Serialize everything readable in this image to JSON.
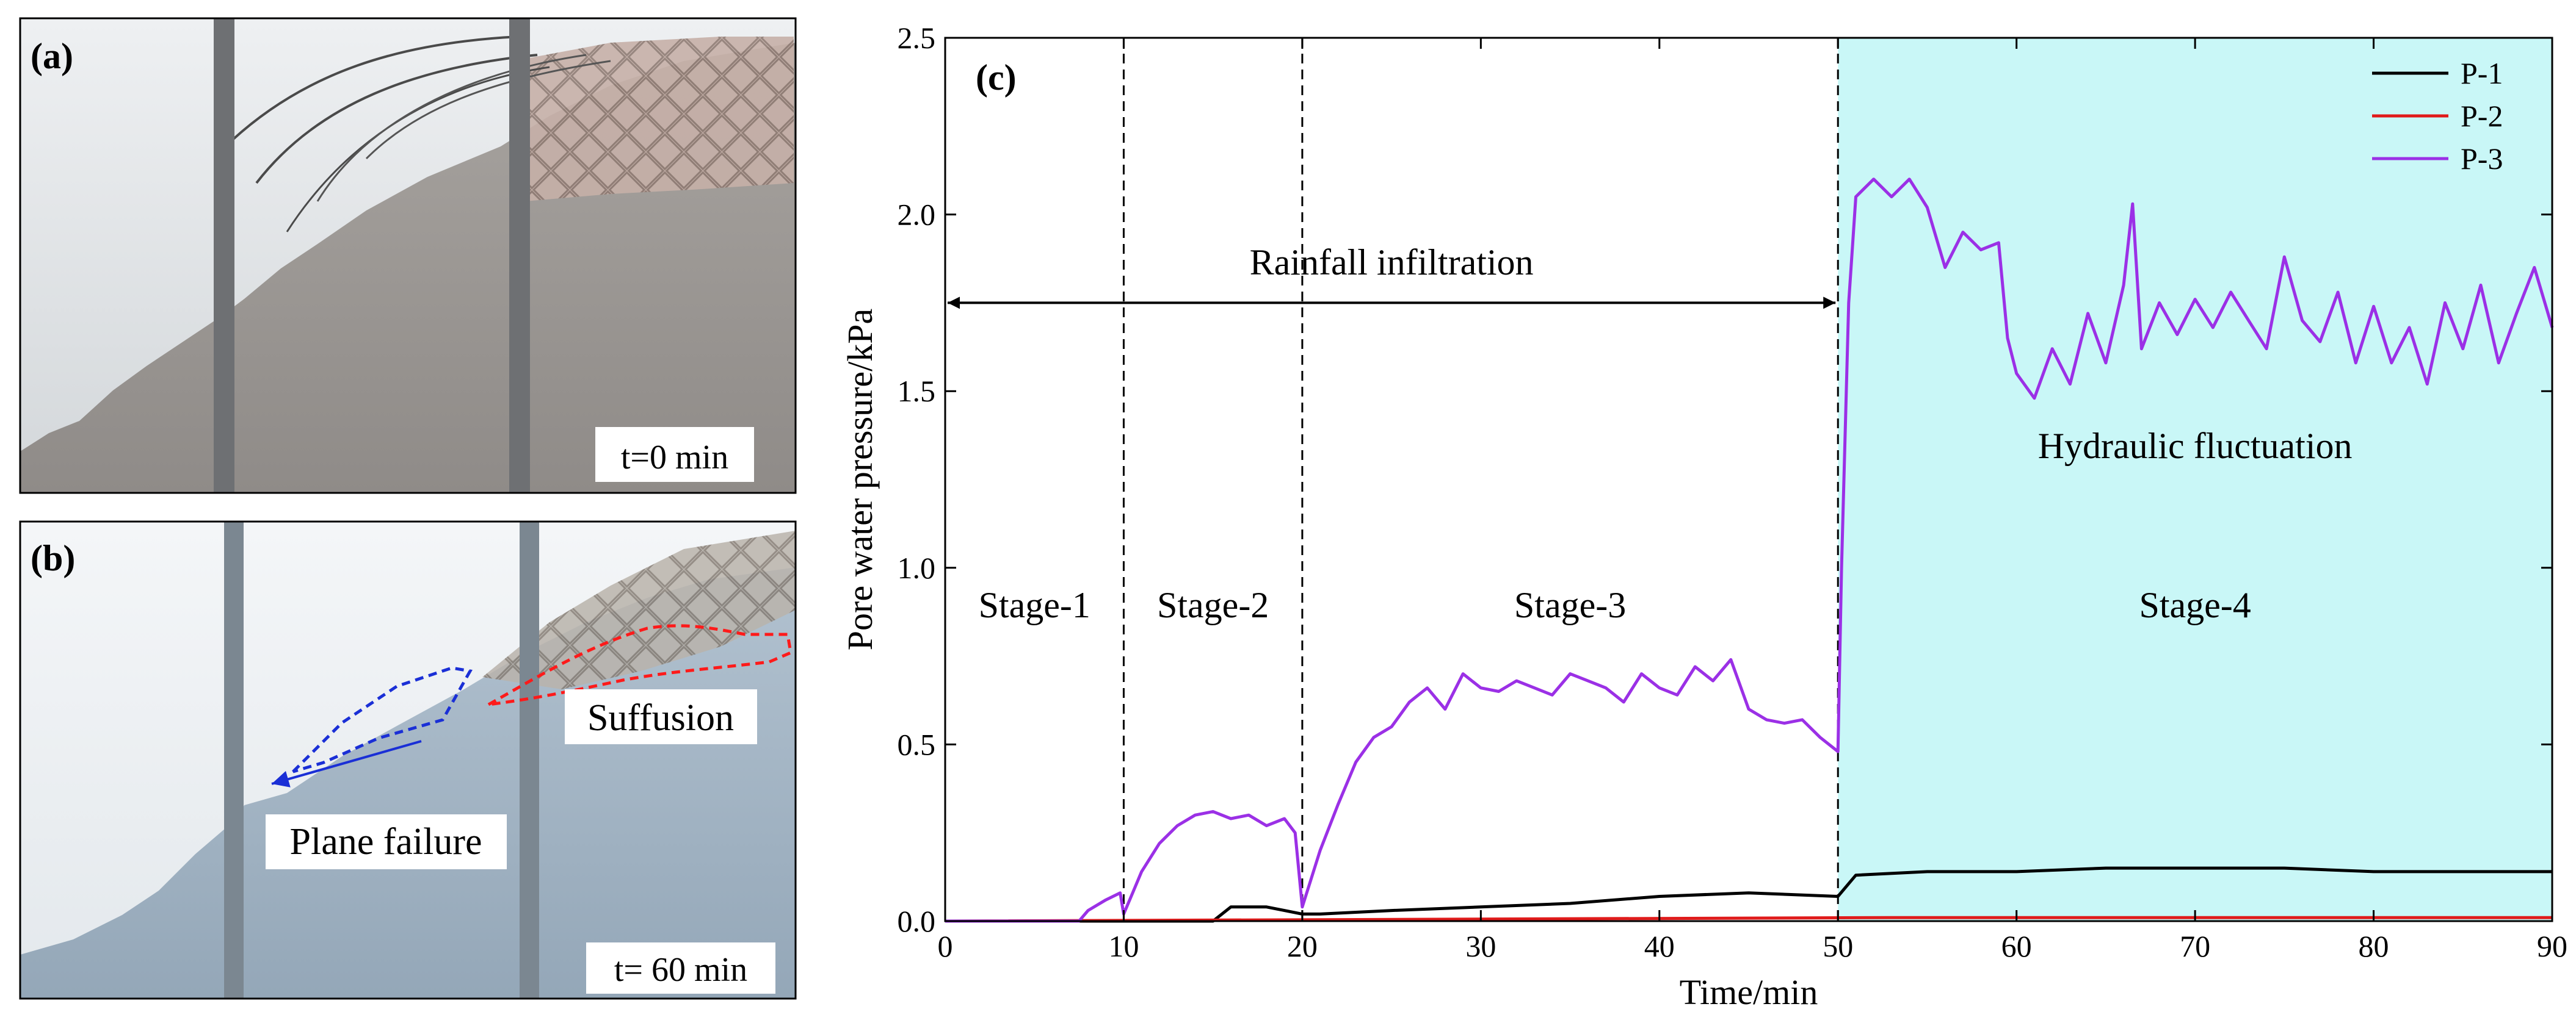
{
  "panel_a": {
    "label": "(a)",
    "time_label": "t=0 min"
  },
  "panel_b": {
    "label": "(b)",
    "time_label": "t= 60 min",
    "annotation_suffusion": "Suffusion",
    "annotation_plane_failure": "Plane failure",
    "colors": {
      "suffusion_outline": "#ff1a1a",
      "plane_outline": "#1a2fd6"
    }
  },
  "chart_data": {
    "type": "line",
    "panel_label": "(c)",
    "xlabel": "Time/min",
    "ylabel": "Pore water pressure/kPa",
    "xlim": [
      0,
      90
    ],
    "ylim": [
      0,
      2.5
    ],
    "xticks": [
      0,
      10,
      20,
      30,
      40,
      50,
      60,
      70,
      80,
      90
    ],
    "yticks": [
      0.0,
      0.5,
      1.0,
      1.5,
      2.0,
      2.5
    ],
    "ytick_labels": [
      "0.0",
      "0.5",
      "1.0",
      "1.5",
      "2.0",
      "2.5"
    ],
    "stage_boundaries": [
      10,
      20,
      50
    ],
    "stages": [
      {
        "label": "Stage-1",
        "x": 5,
        "y": 0.86
      },
      {
        "label": "Stage-2",
        "x": 15,
        "y": 0.86
      },
      {
        "label": "Stage-3",
        "x": 35,
        "y": 0.86
      },
      {
        "label": "Stage-4",
        "x": 70,
        "y": 0.86
      }
    ],
    "shaded_region": {
      "x": [
        50,
        90
      ],
      "color": "#c9f7f7"
    },
    "annotations": [
      {
        "text": "Rainfall infiltration",
        "x": 25,
        "y": 1.83
      },
      {
        "text": "Hydraulic fluctuation",
        "x": 70,
        "y": 1.31
      }
    ],
    "arrow": {
      "x": [
        0,
        50
      ],
      "y": 1.75
    },
    "legend_position": "top-right",
    "series": [
      {
        "name": "P-1",
        "color": "#000000",
        "x": [
          0,
          15,
          16,
          18,
          19,
          20,
          21,
          25,
          30,
          35,
          40,
          45,
          50,
          51,
          55,
          60,
          65,
          70,
          75,
          80,
          85,
          90
        ],
        "y": [
          0,
          0,
          0.04,
          0.04,
          0.03,
          0.02,
          0.02,
          0.03,
          0.04,
          0.05,
          0.07,
          0.08,
          0.07,
          0.13,
          0.14,
          0.14,
          0.15,
          0.15,
          0.15,
          0.14,
          0.14,
          0.14
        ]
      },
      {
        "name": "P-2",
        "color": "#e01b1b",
        "x": [
          0,
          53,
          90
        ],
        "y": [
          0,
          0.01,
          0.01
        ]
      },
      {
        "name": "P-3",
        "color": "#9b30e6",
        "x": [
          0,
          7.5,
          8,
          9,
          9.8,
          10,
          10.5,
          11,
          12,
          13,
          14,
          15,
          16,
          17,
          18,
          19,
          19.6,
          20,
          20.5,
          21,
          22,
          23,
          24,
          25,
          26,
          27,
          28,
          29,
          30,
          31,
          32,
          33,
          34,
          35,
          36,
          37,
          38,
          39,
          40,
          41,
          42,
          43,
          44,
          45,
          46,
          47,
          48,
          49,
          50,
          50.2,
          50.6,
          51,
          52,
          53,
          54,
          55,
          56,
          57,
          58,
          59,
          59.5,
          60,
          61,
          62,
          63,
          64,
          65,
          66,
          66.5,
          67,
          68,
          69,
          70,
          71,
          72,
          73,
          74,
          75,
          76,
          77,
          78,
          79,
          80,
          81,
          82,
          83,
          84,
          85,
          86,
          87,
          88,
          89,
          90
        ],
        "y": [
          0,
          0,
          0.03,
          0.06,
          0.08,
          0.02,
          0.08,
          0.14,
          0.22,
          0.27,
          0.3,
          0.31,
          0.29,
          0.3,
          0.27,
          0.29,
          0.25,
          0.04,
          0.12,
          0.2,
          0.33,
          0.45,
          0.52,
          0.55,
          0.62,
          0.66,
          0.6,
          0.7,
          0.66,
          0.65,
          0.68,
          0.66,
          0.64,
          0.7,
          0.68,
          0.66,
          0.62,
          0.7,
          0.66,
          0.64,
          0.72,
          0.68,
          0.74,
          0.6,
          0.57,
          0.56,
          0.57,
          0.52,
          0.48,
          1.0,
          1.75,
          2.05,
          2.1,
          2.05,
          2.1,
          2.02,
          1.85,
          1.95,
          1.9,
          1.92,
          1.65,
          1.55,
          1.48,
          1.62,
          1.52,
          1.72,
          1.58,
          1.8,
          2.03,
          1.62,
          1.75,
          1.66,
          1.76,
          1.68,
          1.78,
          1.7,
          1.62,
          1.88,
          1.7,
          1.64,
          1.78,
          1.58,
          1.74,
          1.58,
          1.68,
          1.52,
          1.75,
          1.62,
          1.8,
          1.58,
          1.72,
          1.85,
          1.68
        ]
      }
    ]
  }
}
